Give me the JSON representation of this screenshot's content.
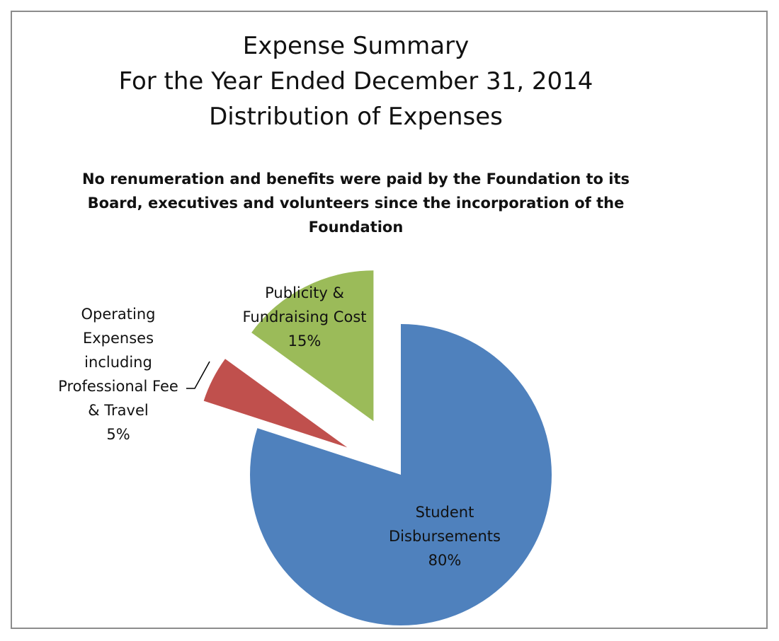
{
  "title_lines": [
    "Expense Summary",
    "For the Year Ended December 31, 2014",
    "Distribution of Expenses"
  ],
  "note_lines": [
    "No renumeration and benefits were paid by the Foundation to its",
    "Board, executives and volunteers since the incorporation of the",
    "Foundation"
  ],
  "chart_data": {
    "type": "pie",
    "title": "Expense Summary\nFor the Year Ended December 31, 2014\nDistribution of Expenses",
    "slices": [
      {
        "label_lines": [
          "Student",
          "Disbursements",
          "80%"
        ],
        "value": 80,
        "color": "#4F81BD",
        "exploded": false
      },
      {
        "label_lines": [
          "Operating",
          "Expenses",
          "including",
          "Professional Fee",
          "& Travel",
          "5%"
        ],
        "value": 5,
        "color": "#C0504D",
        "exploded": true
      },
      {
        "label_lines": [
          "Publicity &",
          "Fundraising Cost",
          "15%"
        ],
        "value": 15,
        "color": "#9BBB59",
        "exploded": true
      }
    ],
    "start_angle": "12 o'clock",
    "direction": "clockwise",
    "legend": "none",
    "data_labels": "category name and percentage"
  }
}
